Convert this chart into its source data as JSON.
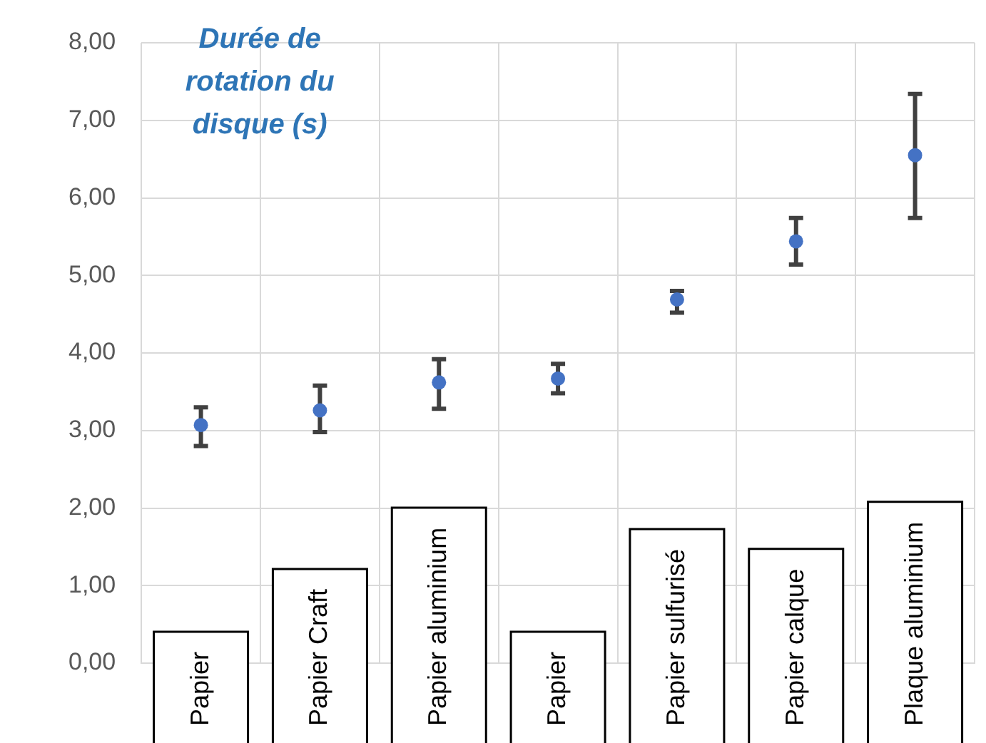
{
  "chart_data": {
    "type": "scatter",
    "ylabel": "Durée de rotation du disque (s)",
    "categories": [
      "Papier",
      "Papier Craft",
      "Papier aluminium",
      "Papier",
      "Papier sulfurisé",
      "Papier calque",
      "Plaque aluminium"
    ],
    "series": [
      {
        "color": "#4472c4",
        "values": [
          3.07,
          3.26,
          3.62,
          3.67,
          4.69,
          5.44,
          6.55
        ],
        "errors": [
          [
            2.8,
            3.3
          ],
          [
            2.98,
            3.58
          ],
          [
            3.28,
            3.92
          ],
          [
            3.48,
            3.86
          ],
          [
            4.52,
            4.8
          ],
          [
            5.14,
            5.74
          ],
          [
            5.74,
            7.34
          ]
        ]
      }
    ],
    "ylim": [
      0,
      8
    ],
    "yticks": [
      {
        "value": 0,
        "label": "0,00"
      },
      {
        "value": 1,
        "label": "1,00"
      },
      {
        "value": 2,
        "label": "2,00"
      },
      {
        "value": 3,
        "label": "3,00"
      },
      {
        "value": 4,
        "label": "4,00"
      },
      {
        "value": 5,
        "label": "5,00"
      },
      {
        "value": 6,
        "label": "6,00"
      },
      {
        "value": 7,
        "label": "7,00"
      },
      {
        "value": 8,
        "label": "8,00"
      }
    ],
    "grid": true,
    "marker": "circle"
  }
}
